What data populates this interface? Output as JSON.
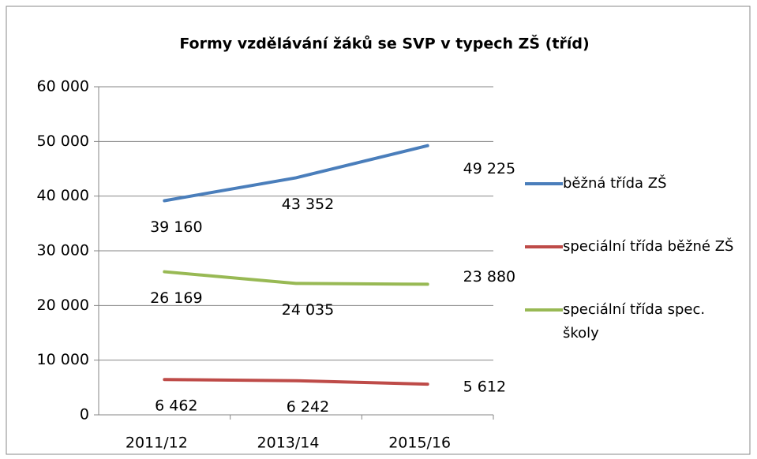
{
  "chart_data": {
    "type": "line",
    "title": "Formy vzdělávání žáků se SVP v typech ZŠ (tříd)",
    "categories": [
      "2011/12",
      "2013/14",
      "2015/16"
    ],
    "series": [
      {
        "name": "běžná třída ZŠ",
        "color": "#4a7ebb",
        "values": [
          39160,
          43352,
          49225
        ],
        "value_labels": [
          "39 160",
          "43 352",
          "49 225"
        ]
      },
      {
        "name": "speciální třída běžné ZŠ",
        "color": "#be4b48",
        "values": [
          6462,
          6242,
          5612
        ],
        "value_labels": [
          "6 462",
          "6 242",
          "5 612"
        ]
      },
      {
        "name": "speciální třída spec. školy",
        "color": "#98b954",
        "values": [
          26169,
          24035,
          23880
        ],
        "value_labels": [
          "26 169",
          "24 035",
          "23 880"
        ]
      }
    ],
    "ylim": [
      0,
      60000
    ],
    "yticks": [
      0,
      {
        "value": 10000,
        "label": "10 000"
      },
      {
        "value": 20000,
        "label": "20 000"
      },
      {
        "value": 30000,
        "label": "30 000"
      },
      {
        "value": 40000,
        "label": "40 000"
      },
      {
        "value": 50000,
        "label": "50 000"
      },
      {
        "value": 60000,
        "label": "60 000"
      }
    ],
    "grid": true,
    "legend": "right"
  }
}
